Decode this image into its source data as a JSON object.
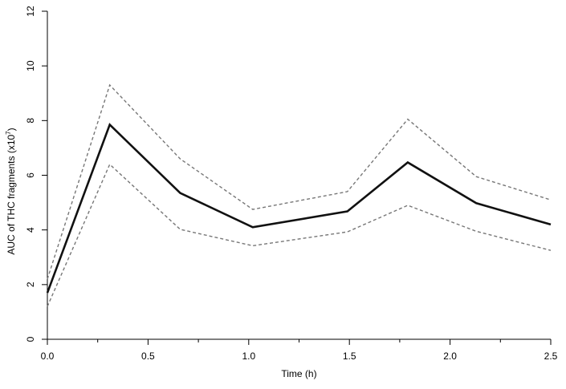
{
  "chart_data": {
    "type": "line",
    "xlabel": "Time (h)",
    "ylabel_main": "AUC of THC fragments (x10",
    "ylabel_sup": "7",
    "ylabel_close": ")",
    "xlim": [
      0,
      2.5
    ],
    "ylim": [
      0,
      12
    ],
    "x_ticks": [
      0.0,
      0.5,
      1.0,
      1.5,
      2.0,
      2.5
    ],
    "x_tick_labels": [
      "0.0",
      "0.5",
      "1.0",
      "1.5",
      "2.0",
      "2.5"
    ],
    "x_minor_ticks": [
      0.25,
      0.75,
      1.25,
      1.75,
      2.25
    ],
    "y_ticks": [
      0,
      2,
      4,
      6,
      8,
      10,
      12
    ],
    "y_tick_labels": [
      "0",
      "2",
      "4",
      "6",
      "8",
      "10",
      "12"
    ],
    "grid": false,
    "series": [
      {
        "style": "solid",
        "color": "#111111",
        "x": [
          0.0,
          0.31,
          0.66,
          1.02,
          1.49,
          1.79,
          2.13,
          2.5
        ],
        "y": [
          1.7,
          7.85,
          5.35,
          4.1,
          4.68,
          6.47,
          4.98,
          4.2
        ]
      },
      {
        "style": "dashed",
        "color": "#777777",
        "x": [
          0.0,
          0.31,
          0.66,
          1.02,
          1.49,
          1.79,
          2.13,
          2.5
        ],
        "y": [
          2.2,
          9.3,
          6.6,
          4.75,
          5.4,
          8.05,
          5.95,
          5.1
        ]
      },
      {
        "style": "dashed",
        "color": "#777777",
        "x": [
          0.0,
          0.31,
          0.66,
          1.02,
          1.49,
          1.79,
          2.13,
          2.5
        ],
        "y": [
          1.2,
          6.4,
          4.02,
          3.42,
          3.93,
          4.9,
          3.95,
          3.25
        ]
      }
    ]
  }
}
